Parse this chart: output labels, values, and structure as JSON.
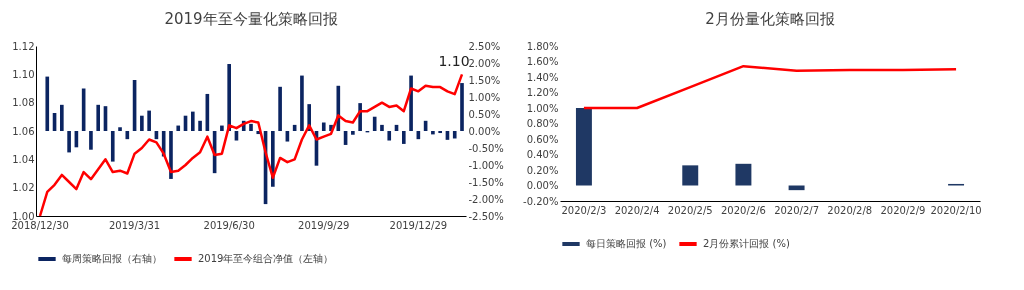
{
  "chart_data": [
    {
      "type": "bar",
      "title": "2019年至今量化策略回报",
      "categories": [
        "2018/12/30",
        null,
        null,
        null,
        null,
        null,
        null,
        null,
        null,
        null,
        null,
        null,
        null,
        "2019/3/31",
        null,
        null,
        null,
        null,
        null,
        null,
        null,
        null,
        null,
        null,
        null,
        null,
        "2019/6/30",
        null,
        null,
        null,
        null,
        null,
        null,
        null,
        null,
        null,
        null,
        null,
        null,
        "2019/9/29",
        null,
        null,
        null,
        null,
        null,
        null,
        null,
        null,
        null,
        null,
        null,
        null,
        "2019/12/29",
        null,
        null,
        null,
        null,
        null,
        null
      ],
      "series": [
        {
          "name": "每周策略回报（右轴）",
          "axis": "y2",
          "color": "#0b2461",
          "values": [
            null,
            1.6,
            0.53,
            0.77,
            -0.63,
            -0.48,
            1.25,
            -0.55,
            0.77,
            0.73,
            -0.9,
            0.11,
            -0.24,
            1.5,
            0.45,
            0.6,
            -0.24,
            -0.75,
            -1.41,
            0.16,
            0.45,
            0.57,
            0.3,
            1.09,
            -1.24,
            0.16,
            1.97,
            -0.28,
            0.3,
            0.21,
            -0.09,
            -2.15,
            -1.64,
            1.3,
            -0.31,
            0.18,
            1.63,
            0.79,
            -1.02,
            0.25,
            0.18,
            1.33,
            -0.41,
            -0.11,
            0.82,
            -0.04,
            0.42,
            0.18,
            -0.28,
            0.18,
            -0.38,
            1.63,
            -0.24,
            0.3,
            -0.1,
            -0.06,
            -0.26,
            -0.22,
            1.41
          ]
        },
        {
          "name": "2019年至今组合净值（左轴）",
          "type": "line",
          "color": "#ff0000",
          "values": [
            1.0,
            1.017,
            1.022,
            1.029,
            1.024,
            1.019,
            1.031,
            1.026,
            1.033,
            1.04,
            1.031,
            1.032,
            1.03,
            1.044,
            1.048,
            1.054,
            1.052,
            1.044,
            1.031,
            1.032,
            1.036,
            1.041,
            1.045,
            1.056,
            1.043,
            1.044,
            1.064,
            1.062,
            1.065,
            1.067,
            1.066,
            1.045,
            1.027,
            1.041,
            1.038,
            1.04,
            1.054,
            1.064,
            1.054,
            1.056,
            1.058,
            1.071,
            1.067,
            1.066,
            1.074,
            1.074,
            1.077,
            1.08,
            1.077,
            1.078,
            1.074,
            1.09,
            1.088,
            1.092,
            1.091,
            1.091,
            1.088,
            1.086,
            1.1
          ],
          "value_labels": [
            null,
            null,
            null,
            null,
            null,
            null,
            null,
            null,
            null,
            null,
            null,
            null,
            null,
            null,
            null,
            null,
            null,
            null,
            null,
            null,
            null,
            null,
            null,
            null,
            null,
            null,
            null,
            null,
            null,
            null,
            null,
            null,
            null,
            null,
            null,
            null,
            null,
            null,
            null,
            null,
            null,
            null,
            null,
            null,
            null,
            null,
            null,
            null,
            null,
            null,
            null,
            null,
            null,
            null,
            null,
            null,
            null,
            null,
            "1.10"
          ]
        }
      ],
      "ylim": [
        1.0,
        1.12
      ],
      "yticks": [
        {
          "value": 1.0,
          "label": "1.00"
        },
        {
          "value": 1.02,
          "label": "1.02"
        },
        {
          "value": 1.04,
          "label": "1.04"
        },
        {
          "value": 1.06,
          "label": "1.06"
        },
        {
          "value": 1.08,
          "label": "1.08"
        },
        {
          "value": 1.1,
          "label": "1.10"
        },
        {
          "value": 1.12,
          "label": "1.12"
        }
      ],
      "y2lim": [
        -2.5,
        2.5
      ],
      "y2ticks": [
        {
          "value": -2.5,
          "label": "-2.50%"
        },
        {
          "value": -2,
          "label": "-2.00%"
        },
        {
          "value": -1.5,
          "label": "-1.50%"
        },
        {
          "value": -1,
          "label": "-1.00%"
        },
        {
          "value": -0.5,
          "label": "-0.50%"
        },
        {
          "value": 0,
          "label": "0.00%"
        },
        {
          "value": 0.5,
          "label": "0.50%"
        },
        {
          "value": 1,
          "label": "1.00%"
        },
        {
          "value": 1.5,
          "label": "1.50%"
        },
        {
          "value": 2,
          "label": "2.00%"
        },
        {
          "value": 2.5,
          "label": "2.50%"
        }
      ],
      "legend": "bottom"
    },
    {
      "type": "bar",
      "title": "2月份量化策略回报",
      "categories": [
        "2020/2/3",
        "2020/2/4",
        "2020/2/5",
        "2020/2/6",
        "2020/2/7",
        "2020/2/8",
        "2020/2/9",
        "2020/2/10"
      ],
      "series": [
        {
          "name": "每日策略回报 (%)",
          "color": "#1f3864",
          "values": [
            1.0,
            null,
            0.26,
            0.28,
            -0.06,
            null,
            null,
            0.02
          ]
        },
        {
          "name": "2月份累计回报 (%)",
          "type": "line",
          "color": "#ff0000",
          "values": [
            1.0,
            1.0,
            1.27,
            1.54,
            1.48,
            1.49,
            1.49,
            1.5
          ]
        }
      ],
      "ylim": [
        -0.2,
        1.8
      ],
      "yticks": [
        {
          "value": -0.2,
          "label": "-0.20%"
        },
        {
          "value": 0,
          "label": "0.00%"
        },
        {
          "value": 0.2,
          "label": "0.20%"
        },
        {
          "value": 0.4,
          "label": "0.40%"
        },
        {
          "value": 0.6,
          "label": "0.60%"
        },
        {
          "value": 0.8,
          "label": "0.80%"
        },
        {
          "value": 1.0,
          "label": "1.00%"
        },
        {
          "value": 1.2,
          "label": "1.20%"
        },
        {
          "value": 1.4,
          "label": "1.40%"
        },
        {
          "value": 1.6,
          "label": "1.60%"
        },
        {
          "value": 1.8,
          "label": "1.80%"
        }
      ],
      "legend": "bottom"
    }
  ]
}
